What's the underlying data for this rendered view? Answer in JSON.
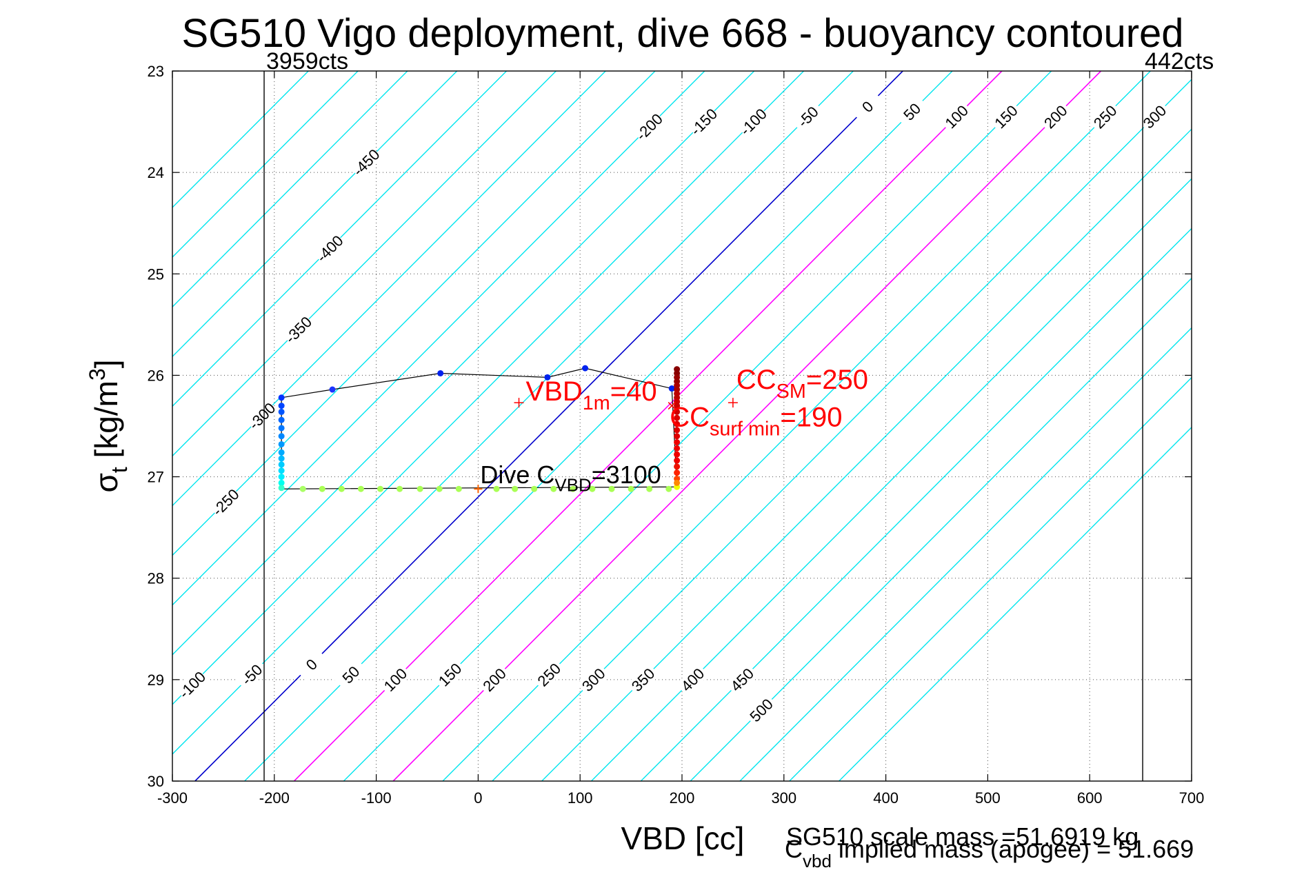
{
  "chart_data": {
    "type": "scatter",
    "title": "SG510 Vigo deployment, dive 668 - buoyancy contoured",
    "xlabel": "VBD [cc]",
    "ylabel": {
      "main": "σ",
      "sub": "t",
      "unit": " [kg/m",
      "sup": "3",
      "close": "]"
    },
    "xlim": [
      -300,
      700
    ],
    "ylim": [
      23,
      30
    ],
    "y_reversed": true,
    "grid": true,
    "xticks": [
      "-300",
      "-200",
      "-100",
      "0",
      "100",
      "200",
      "300",
      "400",
      "500",
      "600",
      "700"
    ],
    "yticks": [
      "23",
      "24",
      "25",
      "26",
      "27",
      "28",
      "29",
      "30"
    ],
    "limit_lines": [
      {
        "x": -210,
        "label": "3959cts"
      },
      {
        "x": 652,
        "label": "442cts"
      }
    ],
    "contours": {
      "levels": [
        -450,
        -400,
        -350,
        -300,
        -250,
        -200,
        -150,
        -100,
        -50,
        0,
        50,
        100,
        150,
        200,
        250,
        300,
        350,
        400,
        450,
        500
      ],
      "spacing_cc": 48.6,
      "slope_cc_per_sigma": -99.2,
      "ref_vbd_at_sigma_27_2_for_zero": 0,
      "zero_color": "#0000cc",
      "highlight_levels": [
        100,
        200
      ],
      "highlight_color": "#ff00ff",
      "default_color": "#00e5ee",
      "top_labels": [
        {
          "level": "-450",
          "sigma": 23.9
        },
        {
          "level": "-400",
          "sigma": 24.75
        },
        {
          "level": "-350",
          "sigma": 25.55
        },
        {
          "level": "-300",
          "sigma": 26.4
        },
        {
          "level": "-250",
          "sigma": 27.25
        },
        {
          "level": "-200",
          "sigma": 23.55
        },
        {
          "level": "-150",
          "sigma": 23.5
        },
        {
          "level": "-100",
          "sigma": 23.5
        },
        {
          "level": "-50",
          "sigma": 23.45
        },
        {
          "level": "0",
          "sigma": 23.35
        },
        {
          "level": "50",
          "sigma": 23.4
        },
        {
          "level": "100",
          "sigma": 23.45
        },
        {
          "level": "150",
          "sigma": 23.45
        },
        {
          "level": "200",
          "sigma": 23.45
        },
        {
          "level": "250",
          "sigma": 23.45
        },
        {
          "level": "300",
          "sigma": 23.45
        },
        {
          "level": "350",
          "sigma": 23.45
        },
        {
          "level": "400",
          "sigma": 23.45
        },
        {
          "level": "450",
          "sigma": 23.45
        },
        {
          "level": "500",
          "sigma": 23.7
        }
      ],
      "bottom_labels": [
        {
          "level": "-200",
          "sigma": 29.1
        },
        {
          "level": "-150",
          "sigma": 29.05
        },
        {
          "level": "-100",
          "sigma": 29.05
        },
        {
          "level": "-50",
          "sigma": 28.95
        },
        {
          "level": "0",
          "sigma": 28.85
        },
        {
          "level": "50",
          "sigma": 28.95
        },
        {
          "level": "100",
          "sigma": 29.0
        },
        {
          "level": "150",
          "sigma": 28.95
        },
        {
          "level": "200",
          "sigma": 29.0
        },
        {
          "level": "250",
          "sigma": 28.95
        },
        {
          "level": "300",
          "sigma": 29.0
        },
        {
          "level": "350",
          "sigma": 29.0
        },
        {
          "level": "400",
          "sigma": 29.0
        },
        {
          "level": "450",
          "sigma": 29.0
        },
        {
          "level": "500",
          "sigma": 29.3
        }
      ]
    },
    "dive_trace": [
      {
        "x": -193,
        "y": 26.22
      },
      {
        "x": -143,
        "y": 26.14
      },
      {
        "x": -37,
        "y": 25.98
      },
      {
        "x": 68,
        "y": 26.02
      },
      {
        "x": 105,
        "y": 25.93
      },
      {
        "x": 190,
        "y": 26.13
      },
      {
        "x": 195,
        "y": 27.1
      },
      {
        "x": -193,
        "y": 27.12
      },
      {
        "x": -193,
        "y": 26.22
      }
    ],
    "markers": [
      {
        "x": -193,
        "y": 26.22,
        "color": "#0033ff"
      },
      {
        "x": -193,
        "y": 26.3,
        "color": "#0044ff"
      },
      {
        "x": -193,
        "y": 26.36,
        "color": "#0055ff"
      },
      {
        "x": -193,
        "y": 26.44,
        "color": "#0066ff"
      },
      {
        "x": -193,
        "y": 26.52,
        "color": "#0077ff"
      },
      {
        "x": -193,
        "y": 26.6,
        "color": "#0088ff"
      },
      {
        "x": -193,
        "y": 26.68,
        "color": "#0099ff"
      },
      {
        "x": -193,
        "y": 26.76,
        "color": "#00aaff"
      },
      {
        "x": -193,
        "y": 26.82,
        "color": "#00bbff"
      },
      {
        "x": -193,
        "y": 26.88,
        "color": "#00ccff"
      },
      {
        "x": -193,
        "y": 26.94,
        "color": "#00ddff"
      },
      {
        "x": -193,
        "y": 27.0,
        "color": "#00eeff"
      },
      {
        "x": -193,
        "y": 27.06,
        "color": "#00ffee"
      },
      {
        "x": -193,
        "y": 27.11,
        "color": "#33ffcc"
      },
      {
        "x": -143,
        "y": 26.14,
        "color": "#1a33ff"
      },
      {
        "x": -37,
        "y": 25.98,
        "color": "#0022ee"
      },
      {
        "x": 68,
        "y": 26.02,
        "color": "#0022ee"
      },
      {
        "x": 105,
        "y": 25.93,
        "color": "#0022ee"
      },
      {
        "x": 190,
        "y": 26.13,
        "color": "#0022ee"
      },
      {
        "x": -172,
        "y": 27.12,
        "color": "#aaff66"
      },
      {
        "x": -153,
        "y": 27.12,
        "color": "#aaff55"
      },
      {
        "x": -134,
        "y": 27.12,
        "color": "#aaff55"
      },
      {
        "x": -115,
        "y": 27.12,
        "color": "#aaff55"
      },
      {
        "x": -96,
        "y": 27.12,
        "color": "#aaff55"
      },
      {
        "x": -77,
        "y": 27.12,
        "color": "#aaff55"
      },
      {
        "x": -57,
        "y": 27.12,
        "color": "#aaff55"
      },
      {
        "x": -38,
        "y": 27.12,
        "color": "#aaff55"
      },
      {
        "x": -19,
        "y": 27.12,
        "color": "#aaff55"
      },
      {
        "x": 18,
        "y": 27.12,
        "color": "#aaff55"
      },
      {
        "x": 36,
        "y": 27.12,
        "color": "#aaff55"
      },
      {
        "x": 55,
        "y": 27.12,
        "color": "#aaff55"
      },
      {
        "x": 74,
        "y": 27.12,
        "color": "#aaff55"
      },
      {
        "x": 93,
        "y": 27.12,
        "color": "#aaff55"
      },
      {
        "x": 112,
        "y": 27.12,
        "color": "#aaff55"
      },
      {
        "x": 131,
        "y": 27.12,
        "color": "#aaff55"
      },
      {
        "x": 150,
        "y": 27.12,
        "color": "#aaff55"
      },
      {
        "x": 168,
        "y": 27.12,
        "color": "#aaff55"
      },
      {
        "x": 187,
        "y": 27.12,
        "color": "#aaff55"
      },
      {
        "x": 195,
        "y": 27.1,
        "color": "#eeff00"
      },
      {
        "x": 195,
        "y": 25.94,
        "color": "#880000"
      },
      {
        "x": 195,
        "y": 25.98,
        "color": "#880000"
      },
      {
        "x": 195,
        "y": 26.02,
        "color": "#990000"
      },
      {
        "x": 195,
        "y": 26.06,
        "color": "#990000"
      },
      {
        "x": 195,
        "y": 26.1,
        "color": "#aa0000"
      },
      {
        "x": 195,
        "y": 26.14,
        "color": "#aa0000"
      },
      {
        "x": 195,
        "y": 26.18,
        "color": "#bb0000"
      },
      {
        "x": 195,
        "y": 26.22,
        "color": "#bb0000"
      },
      {
        "x": 195,
        "y": 26.26,
        "color": "#cc0000"
      },
      {
        "x": 195,
        "y": 26.3,
        "color": "#cc0000"
      },
      {
        "x": 195,
        "y": 26.36,
        "color": "#cc0000"
      },
      {
        "x": 195,
        "y": 26.42,
        "color": "#dd0000"
      },
      {
        "x": 195,
        "y": 26.48,
        "color": "#dd0000"
      },
      {
        "x": 195,
        "y": 26.54,
        "color": "#dd0000"
      },
      {
        "x": 195,
        "y": 26.6,
        "color": "#dd0000"
      },
      {
        "x": 195,
        "y": 26.66,
        "color": "#ee0000"
      },
      {
        "x": 195,
        "y": 26.72,
        "color": "#ee0000"
      },
      {
        "x": 195,
        "y": 26.78,
        "color": "#ee0000"
      },
      {
        "x": 195,
        "y": 26.84,
        "color": "#ee0000"
      },
      {
        "x": 195,
        "y": 26.9,
        "color": "#ee1100"
      },
      {
        "x": 195,
        "y": 26.96,
        "color": "#ff2200"
      },
      {
        "x": 195,
        "y": 27.02,
        "color": "#ff4400"
      },
      {
        "x": 195,
        "y": 27.06,
        "color": "#ff8800"
      }
    ],
    "dive_cvbd_marker": {
      "x": 0,
      "y": 27.12,
      "color": "#ff6600"
    },
    "annotations": [
      {
        "id": "vbd1m",
        "x": 40,
        "y": 26.27,
        "marker": "+",
        "text": "VBD",
        "sub": "1m",
        "rest": "=40",
        "color": "#ff0000"
      },
      {
        "id": "ccsm",
        "x": 250,
        "y": 26.27,
        "marker": "+",
        "text": "CC",
        "sub": "SM",
        "rest": "=250",
        "color": "#ff0000"
      },
      {
        "id": "ccsurfmin",
        "x": 190,
        "y": 26.3,
        "marker": "x",
        "text": "CC",
        "sub": "surf min",
        "rest": "=190",
        "color": "#ff0000"
      },
      {
        "id": "divecvbd",
        "x": 0,
        "y": 27.12,
        "text": "Dive C",
        "sub": "VBD",
        "rest": "=3100",
        "color": "#000000"
      }
    ]
  },
  "footer": {
    "scale_mass": "SG510 scale mass =51.6919 kg",
    "implied_c": "C",
    "implied_sub": "vbd",
    "implied_rest": " implied mass (apogee) = 51.669"
  }
}
